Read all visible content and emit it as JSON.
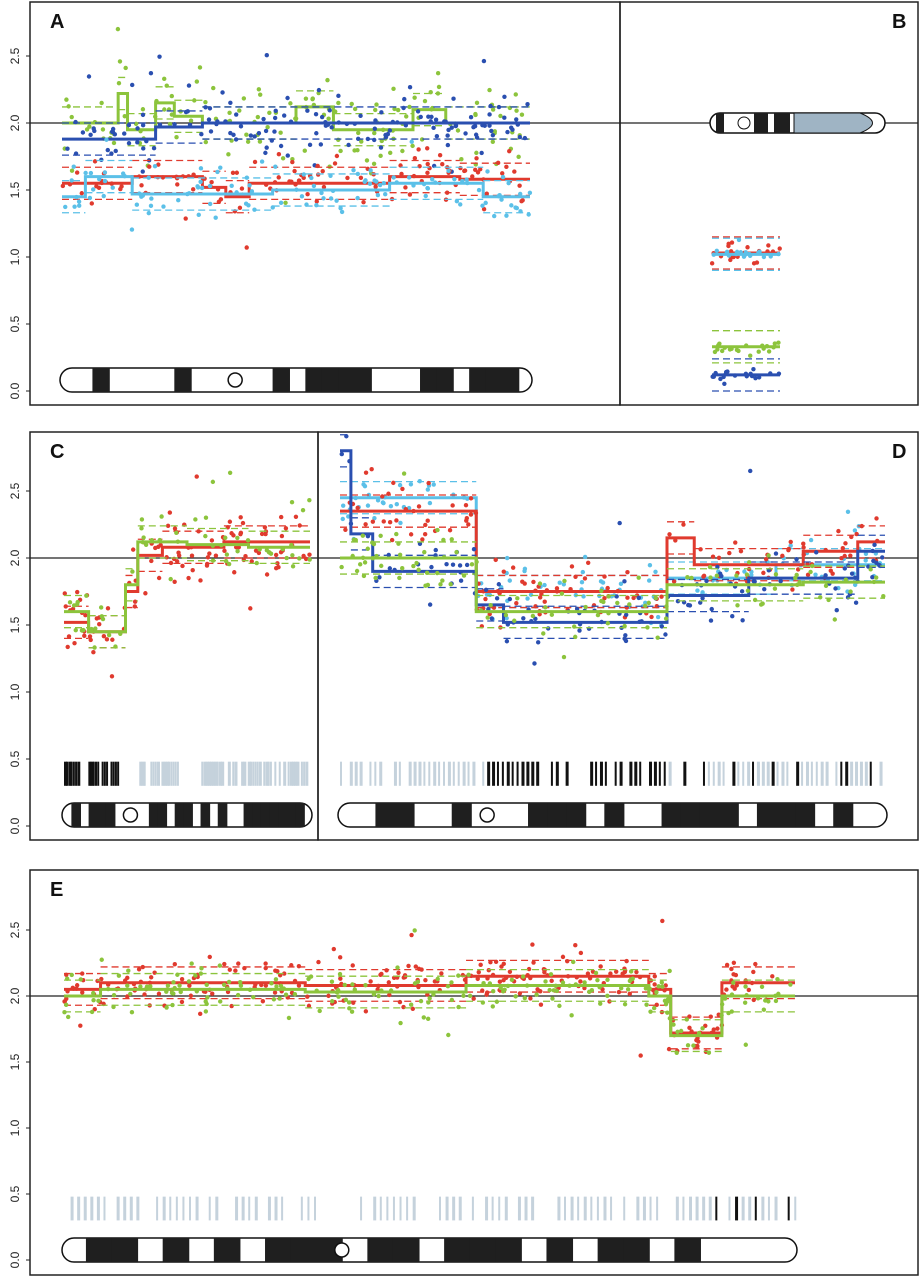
{
  "colors": {
    "red": "#e03a2e",
    "green": "#8cc43c",
    "dark_blue": "#2a4fb0",
    "light_blue": "#5bc0e8",
    "band_grey": "#c5d2dc",
    "ideogram_black": "#1f1f1f",
    "acrocentric_fill": "#9fb4c4"
  },
  "chart_data": [
    {
      "panel": "A",
      "type": "scatter",
      "label": "A",
      "ylim": [
        0,
        2.9
      ],
      "yticks": [
        "0.0",
        "0.5",
        "1.0",
        "1.5",
        "2.0",
        "2.5"
      ],
      "reference_line": 2.0,
      "series": [
        {
          "name": "green",
          "segments": [
            [
              0,
              0.12,
              2.0
            ],
            [
              0.12,
              0.14,
              2.22
            ],
            [
              0.14,
              0.2,
              1.95
            ],
            [
              0.2,
              0.24,
              2.15
            ],
            [
              0.24,
              0.3,
              2.05
            ],
            [
              0.3,
              0.5,
              2.0
            ],
            [
              0.5,
              0.58,
              2.12
            ],
            [
              0.58,
              0.75,
              1.95
            ],
            [
              0.75,
              0.82,
              2.1
            ],
            [
              0.82,
              1,
              2.0
            ]
          ],
          "spread": 0.3,
          "n": 150
        },
        {
          "name": "dark_blue",
          "segments": [
            [
              0,
              0.2,
              1.88
            ],
            [
              0.2,
              0.3,
              1.97
            ],
            [
              0.3,
              1,
              2.0
            ]
          ],
          "spread": 0.22,
          "n": 150
        },
        {
          "name": "red",
          "segments": [
            [
              0,
              0.15,
              1.55
            ],
            [
              0.15,
              0.3,
              1.6
            ],
            [
              0.3,
              0.35,
              1.52
            ],
            [
              0.35,
              0.4,
              1.45
            ],
            [
              0.4,
              0.7,
              1.55
            ],
            [
              0.7,
              0.85,
              1.6
            ],
            [
              0.85,
              1,
              1.58
            ]
          ],
          "spread": 0.2,
          "n": 120
        },
        {
          "name": "light_blue",
          "segments": [
            [
              0,
              0.05,
              1.45
            ],
            [
              0.05,
              0.15,
              1.6
            ],
            [
              0.15,
              0.45,
              1.47
            ],
            [
              0.45,
              0.7,
              1.5
            ],
            [
              0.7,
              0.9,
              1.55
            ],
            [
              0.9,
              1,
              1.45
            ]
          ],
          "spread": 0.2,
          "n": 120
        }
      ]
    },
    {
      "panel": "B",
      "type": "scatter",
      "label": "B",
      "ylim": [
        0,
        2.9
      ],
      "reference_line": 2.0,
      "acrocentric": true,
      "series": [
        {
          "name": "red",
          "segments": [
            [
              0,
              1,
              1.03
            ]
          ],
          "spread": 0.08,
          "n": 20
        },
        {
          "name": "light_blue",
          "segments": [
            [
              0,
              1,
              1.02
            ]
          ],
          "spread": 0.03,
          "n": 20
        },
        {
          "name": "green",
          "segments": [
            [
              0,
              1,
              0.33
            ]
          ],
          "spread": 0.06,
          "n": 20
        },
        {
          "name": "dark_blue",
          "segments": [
            [
              0,
              1,
              0.12
            ]
          ],
          "spread": 0.03,
          "n": 20
        }
      ]
    },
    {
      "panel": "C",
      "type": "scatter",
      "label": "C",
      "ylim": [
        0,
        2.9
      ],
      "yticks": [
        "0.0",
        "0.5",
        "1.0",
        "1.5",
        "2.0",
        "2.5"
      ],
      "reference_line": 2.0,
      "band_track": [
        [
          0,
          0.22,
          "black"
        ],
        [
          0.3,
          0.46,
          "grey"
        ],
        [
          0.55,
          1,
          "grey"
        ]
      ],
      "series": [
        {
          "name": "red",
          "segments": [
            [
              0,
              0.1,
              1.52
            ],
            [
              0.1,
              0.25,
              1.45
            ],
            [
              0.25,
              0.3,
              1.75
            ],
            [
              0.3,
              0.4,
              2.02
            ],
            [
              0.4,
              0.65,
              2.08
            ],
            [
              0.65,
              1,
              2.12
            ]
          ],
          "spread": 0.25,
          "n": 110
        },
        {
          "name": "green",
          "segments": [
            [
              0,
              0.1,
              1.6
            ],
            [
              0.1,
              0.25,
              1.45
            ],
            [
              0.25,
              0.3,
              1.8
            ],
            [
              0.3,
              0.5,
              2.12
            ],
            [
              0.5,
              0.75,
              2.1
            ],
            [
              0.75,
              1,
              2.08
            ]
          ],
          "spread": 0.22,
          "n": 60
        }
      ]
    },
    {
      "panel": "D",
      "type": "scatter",
      "label": "D",
      "ylim": [
        0,
        2.9
      ],
      "reference_line": 2.0,
      "band_track": [
        [
          0,
          0.27,
          "grey"
        ],
        [
          0.27,
          0.6,
          "black"
        ],
        [
          0.6,
          1,
          "mixed"
        ]
      ],
      "series": [
        {
          "name": "light_blue",
          "segments": [
            [
              0,
              0.25,
              2.45
            ],
            [
              0.25,
              0.6,
              1.75
            ],
            [
              0.6,
              0.8,
              1.85
            ],
            [
              0.8,
              1,
              1.95
            ]
          ],
          "spread": 0.2,
          "n": 120
        },
        {
          "name": "red",
          "segments": [
            [
              0,
              0.25,
              2.35
            ],
            [
              0.25,
              0.6,
              1.75
            ],
            [
              0.6,
              0.65,
              2.15
            ],
            [
              0.65,
              0.85,
              1.95
            ],
            [
              0.85,
              0.95,
              2.05
            ],
            [
              0.95,
              1,
              2.12
            ]
          ],
          "spread": 0.22,
          "n": 140
        },
        {
          "name": "dark_blue",
          "segments": [
            [
              0,
              0.02,
              2.8
            ],
            [
              0.02,
              0.06,
              2.18
            ],
            [
              0.06,
              0.25,
              1.9
            ],
            [
              0.25,
              0.3,
              1.65
            ],
            [
              0.3,
              0.6,
              1.52
            ],
            [
              0.6,
              0.75,
              1.72
            ],
            [
              0.75,
              0.95,
              1.85
            ],
            [
              0.95,
              1,
              2.05
            ]
          ],
          "spread": 0.22,
          "n": 120
        },
        {
          "name": "green",
          "segments": [
            [
              0,
              0.25,
              2.0
            ],
            [
              0.25,
              0.6,
              1.6
            ],
            [
              0.6,
              0.85,
              1.8
            ],
            [
              0.85,
              1,
              1.82
            ]
          ],
          "spread": 0.22,
          "n": 110
        }
      ]
    },
    {
      "panel": "E",
      "type": "scatter",
      "label": "E",
      "ylim": [
        0,
        2.9
      ],
      "yticks": [
        "0.0",
        "0.5",
        "1.0",
        "1.5",
        "2.0",
        "2.5"
      ],
      "reference_line": 2.0,
      "band_track": [
        [
          0,
          0.35,
          "grey"
        ],
        [
          0.4,
          0.78,
          "grey"
        ],
        [
          0.78,
          1,
          "mixed"
        ]
      ],
      "series": [
        {
          "name": "red",
          "segments": [
            [
              0,
              0.05,
              2.05
            ],
            [
              0.05,
              0.33,
              2.1
            ],
            [
              0.33,
              0.55,
              2.08
            ],
            [
              0.55,
              0.8,
              2.15
            ],
            [
              0.8,
              0.83,
              2.05
            ],
            [
              0.83,
              0.9,
              1.72
            ],
            [
              0.9,
              1,
              2.1
            ]
          ],
          "spread": 0.18,
          "n": 260
        },
        {
          "name": "green",
          "segments": [
            [
              0,
              0.05,
              2.0
            ],
            [
              0.05,
              0.33,
              2.05
            ],
            [
              0.33,
              0.55,
              2.03
            ],
            [
              0.55,
              0.8,
              2.08
            ],
            [
              0.8,
              0.83,
              2.0
            ],
            [
              0.83,
              0.9,
              1.7
            ],
            [
              0.9,
              1,
              2.0
            ]
          ],
          "spread": 0.18,
          "n": 200
        }
      ]
    }
  ]
}
